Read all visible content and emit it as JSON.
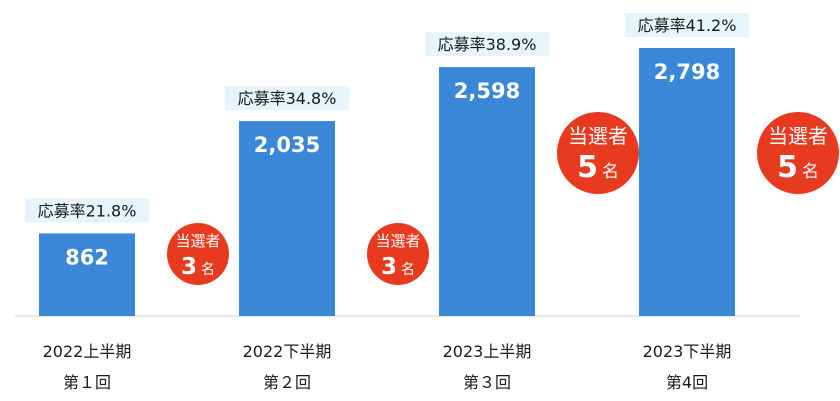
{
  "chart_data": {
    "type": "bar",
    "categories": [
      {
        "line1": "2022上半期",
        "line2": "第１回"
      },
      {
        "line1": "2022下半期",
        "line2": "第２回"
      },
      {
        "line1": "2023上半期",
        "line2": "第３回"
      },
      {
        "line1": "2023下半期",
        "line2": "第4回"
      }
    ],
    "values": [
      862,
      2035,
      2598,
      2798
    ],
    "value_labels": [
      "862",
      "2,035",
      "2,598",
      "2,798"
    ],
    "rate_labels": [
      "応募率21.8%",
      "応募率34.8%",
      "応募率38.9%",
      "応募率41.2%"
    ],
    "winners": [
      {
        "label": "当選者",
        "count": "3",
        "unit": "名"
      },
      {
        "label": "当選者",
        "count": "3",
        "unit": "名"
      },
      {
        "label": "当選者",
        "count": "5",
        "unit": "名"
      },
      {
        "label": "当選者",
        "count": "5",
        "unit": "名"
      }
    ],
    "ylim": [
      0,
      2798
    ],
    "grid": false,
    "colors": {
      "bar": "#3a87d8",
      "winner_circle": "#e83a1e",
      "rate_label_bg": "#e6f5fb",
      "baseline": "#d0d0d0"
    }
  }
}
